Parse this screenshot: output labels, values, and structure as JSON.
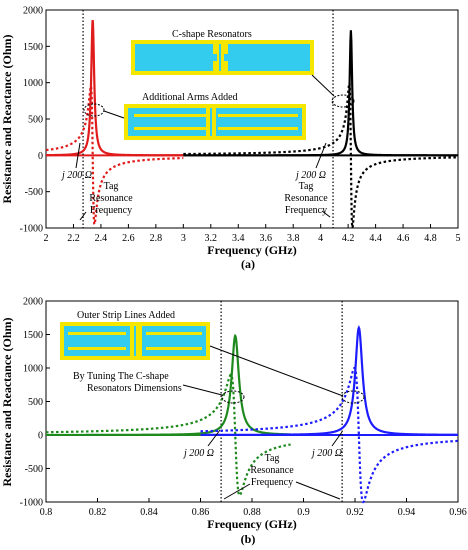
{
  "chart_data": [
    {
      "type": "line",
      "panel_label": "(a)",
      "xlabel": "Frequency (GHz)",
      "ylabel": "Resistance and Reactance (Ohm)",
      "xlim": [
        2,
        5
      ],
      "ylim": [
        -1000,
        2000
      ],
      "xticks": [
        "2",
        "2.2",
        "2.4",
        "2.6",
        "2.8",
        "3",
        "3.2",
        "3.4",
        "3.6",
        "3.8",
        "4",
        "4.2",
        "4.4",
        "4.6",
        "4.8",
        "5"
      ],
      "yticks": [
        "-1000",
        "-500",
        "0",
        "500",
        "1000",
        "1500",
        "2000"
      ],
      "series": [
        {
          "kind": "resistance",
          "color": "#e01b1b",
          "f0": 2.34,
          "peak": 1860,
          "x_range": [
            2.0,
            3.0
          ]
        },
        {
          "kind": "reactance",
          "color": "#e01b1b",
          "f0": 2.34,
          "amp": 950,
          "x_range": [
            2.0,
            3.0
          ]
        },
        {
          "kind": "resistance",
          "color": "#000000",
          "f0": 4.22,
          "peak": 1720,
          "x_range": [
            3.0,
            5.0
          ]
        },
        {
          "kind": "reactance",
          "color": "#000000",
          "f0": 4.22,
          "amp": 1000,
          "x_range": [
            3.0,
            5.0
          ]
        }
      ],
      "vlines": [
        2.27,
        4.09
      ],
      "annotations": {
        "c_shape": "C-shape Resonators",
        "arms": "Additional Arms Added",
        "j200_left": "j 200 Ω",
        "j200_right": "j 200 Ω",
        "tag_left": [
          "Tag",
          "Resonance",
          "Frequency"
        ],
        "tag_right": [
          "Tag",
          "Resonance",
          "Frequency"
        ]
      }
    },
    {
      "type": "line",
      "panel_label": "(b)",
      "xlabel": "Frequency (GHz)",
      "ylabel": "Resistance and Reactance (Ohm)",
      "xlim": [
        0.8,
        0.96
      ],
      "ylim": [
        -1000,
        2000
      ],
      "xticks": [
        "0.8",
        "0.82",
        "0.84",
        "0.86",
        "0.88",
        "0.9",
        "0.92",
        "0.94",
        "0.96"
      ],
      "yticks": [
        "-1000",
        "-500",
        "0",
        "500",
        "1000",
        "1500",
        "2000"
      ],
      "series": [
        {
          "kind": "resistance",
          "color": "#1e8a1e",
          "f0": 0.8735,
          "peak": 1480,
          "x_range": [
            0.8,
            0.895
          ]
        },
        {
          "kind": "reactance",
          "color": "#1e8a1e",
          "f0": 0.8735,
          "amp": 900,
          "x_range": [
            0.8,
            0.895
          ]
        },
        {
          "kind": "resistance",
          "color": "#1c1cff",
          "f0": 0.9215,
          "peak": 1600,
          "x_range": [
            0.86,
            0.96
          ]
        },
        {
          "kind": "reactance",
          "color": "#1c1cff",
          "f0": 0.9215,
          "amp": 1000,
          "x_range": [
            0.86,
            0.96
          ]
        }
      ],
      "vlines": [
        0.868,
        0.915
      ],
      "annotations": {
        "outer": "Outer Strip Lines Added",
        "tuning_1": "By Tuning The C-shape",
        "tuning_2": "Resonators Dimensions",
        "j200_left": "j 200 Ω",
        "j200_right": "j 200 Ω",
        "tag": [
          "Tag",
          "Resonance",
          "Frequency"
        ]
      }
    }
  ],
  "colors": {
    "cyan": "#33ccee",
    "yellow": "#f5e600",
    "red": "#e01b1b",
    "black": "#000000",
    "green": "#1e8a1e",
    "blue": "#1c1cff"
  }
}
